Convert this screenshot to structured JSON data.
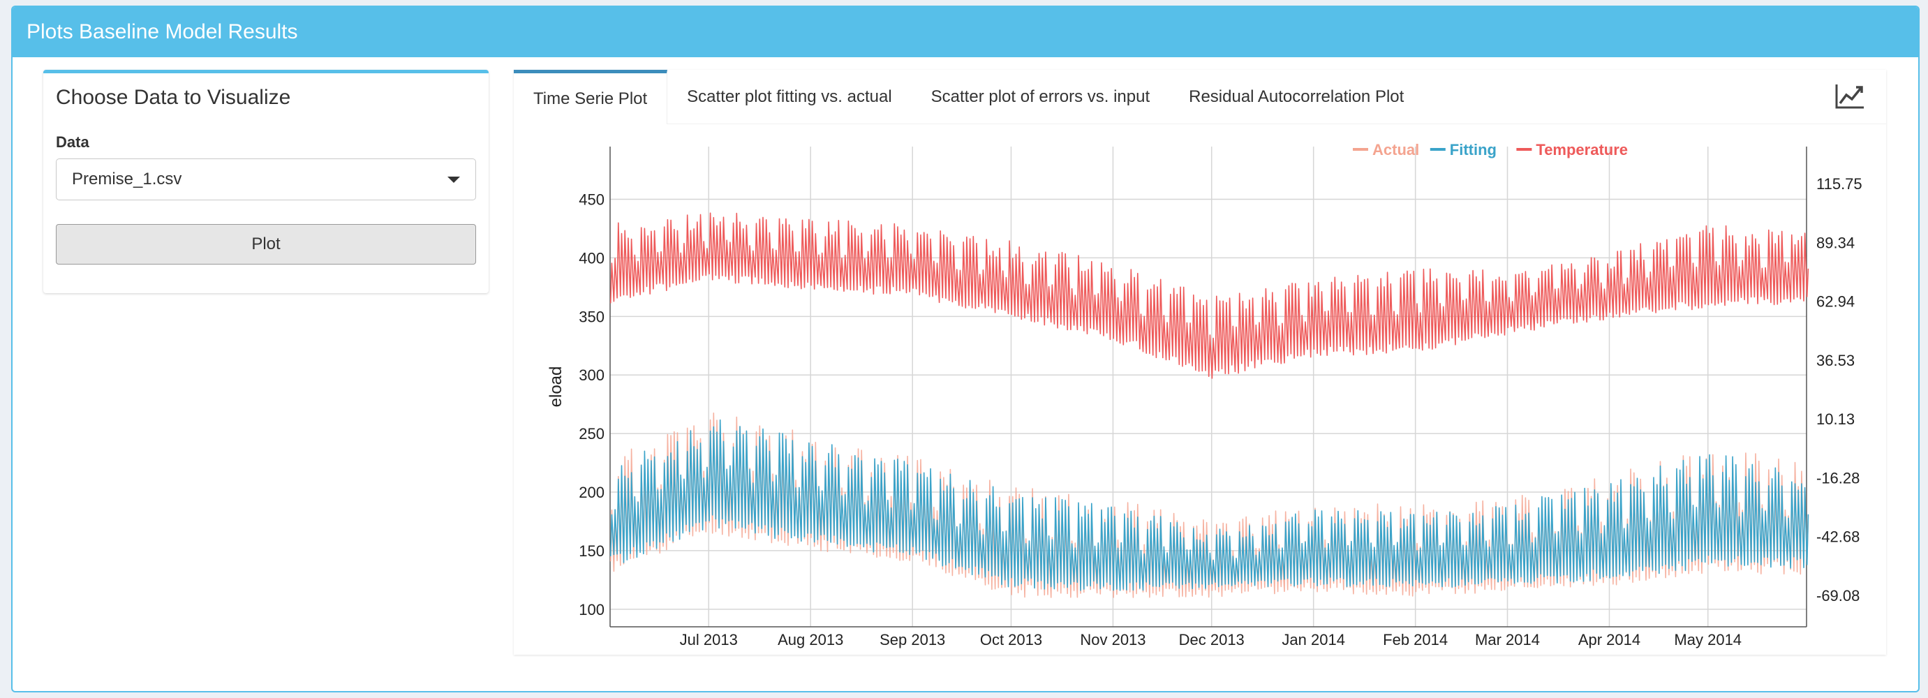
{
  "header": {
    "title": "Plots Baseline Model Results"
  },
  "sidebar_panel": {
    "title": "Choose Data to Visualize",
    "data_label": "Data",
    "data_select_value": "Premise_1.csv",
    "plot_button_label": "Plot"
  },
  "tabs": [
    {
      "label": "Time Serie Plot",
      "active": true
    },
    {
      "label": "Scatter plot fitting vs. actual",
      "active": false
    },
    {
      "label": "Scatter plot of errors vs. input",
      "active": false
    },
    {
      "label": "Residual Autocorrelation Plot",
      "active": false
    }
  ],
  "tab_icon": "line-chart-icon",
  "colors": {
    "accent": "#57bfe9",
    "actual": "#f4a490",
    "fitting": "#3aa3c9",
    "temperature": "#ee5a5a"
  },
  "chart_data": {
    "type": "line",
    "title": "",
    "xlabel": "",
    "ylabel": "eload",
    "y2label": "Temperature",
    "ylim": [
      85,
      495
    ],
    "y2lim": [
      -83.2,
      132.4
    ],
    "yticks": [
      100,
      150,
      200,
      250,
      300,
      350,
      400,
      450
    ],
    "y2ticks": [
      "115.75",
      "89.34",
      "62.94",
      "36.53",
      "10.13",
      "-16.28",
      "-42.68",
      "-69.08"
    ],
    "y2tick_values": [
      115.75,
      89.34,
      62.94,
      36.53,
      10.13,
      -16.28,
      -42.68,
      -69.08
    ],
    "xlim": [
      "2013-06-01",
      "2014-05-31"
    ],
    "xticks": [
      {
        "date": "2013-07-01",
        "label": "Jul 2013"
      },
      {
        "date": "2013-08-01",
        "label": "Aug 2013"
      },
      {
        "date": "2013-09-01",
        "label": "Sep 2013"
      },
      {
        "date": "2013-10-01",
        "label": "Oct 2013"
      },
      {
        "date": "2013-11-01",
        "label": "Nov 2013"
      },
      {
        "date": "2013-12-01",
        "label": "Dec 2013"
      },
      {
        "date": "2014-01-01",
        "label": "Jan 2014"
      },
      {
        "date": "2014-02-01",
        "label": "Feb 2014"
      },
      {
        "date": "2014-03-01",
        "label": "Mar 2014"
      },
      {
        "date": "2014-04-01",
        "label": "Apr 2014"
      },
      {
        "date": "2014-05-01",
        "label": "May 2014"
      }
    ],
    "grid": true,
    "legend_position": "top-right",
    "series": [
      {
        "name": "Actual",
        "axis": "left",
        "color": "#f4a490",
        "envelope": [
          {
            "date": "2013-06-01",
            "low": 130,
            "high": 230
          },
          {
            "date": "2013-07-01",
            "low": 165,
            "high": 270
          },
          {
            "date": "2013-08-01",
            "low": 150,
            "high": 250
          },
          {
            "date": "2013-09-01",
            "low": 140,
            "high": 230
          },
          {
            "date": "2013-10-01",
            "low": 110,
            "high": 205
          },
          {
            "date": "2013-11-01",
            "low": 110,
            "high": 195
          },
          {
            "date": "2013-12-01",
            "low": 110,
            "high": 175
          },
          {
            "date": "2014-01-01",
            "low": 115,
            "high": 190
          },
          {
            "date": "2014-02-01",
            "low": 110,
            "high": 190
          },
          {
            "date": "2014-03-01",
            "low": 115,
            "high": 195
          },
          {
            "date": "2014-04-01",
            "low": 120,
            "high": 215
          },
          {
            "date": "2014-05-01",
            "low": 130,
            "high": 240
          },
          {
            "date": "2014-05-31",
            "low": 130,
            "high": 225
          }
        ]
      },
      {
        "name": "Fitting",
        "axis": "left",
        "color": "#3aa3c9",
        "envelope": [
          {
            "date": "2013-06-01",
            "low": 135,
            "high": 225
          },
          {
            "date": "2013-07-01",
            "low": 170,
            "high": 265
          },
          {
            "date": "2013-08-01",
            "low": 155,
            "high": 245
          },
          {
            "date": "2013-09-01",
            "low": 145,
            "high": 225
          },
          {
            "date": "2013-10-01",
            "low": 118,
            "high": 200
          },
          {
            "date": "2013-11-01",
            "low": 115,
            "high": 190
          },
          {
            "date": "2013-12-01",
            "low": 118,
            "high": 168
          },
          {
            "date": "2014-01-01",
            "low": 120,
            "high": 185
          },
          {
            "date": "2014-02-01",
            "low": 118,
            "high": 185
          },
          {
            "date": "2014-03-01",
            "low": 120,
            "high": 190
          },
          {
            "date": "2014-04-01",
            "low": 125,
            "high": 210
          },
          {
            "date": "2014-05-01",
            "low": 135,
            "high": 235
          },
          {
            "date": "2014-05-31",
            "low": 135,
            "high": 220
          }
        ]
      },
      {
        "name": "Temperature",
        "axis": "right",
        "color": "#ee5a5a",
        "envelope": [
          {
            "date": "2013-06-01",
            "low": 62,
            "high": 98
          },
          {
            "date": "2013-07-01",
            "low": 72,
            "high": 104
          },
          {
            "date": "2013-08-01",
            "low": 68,
            "high": 100
          },
          {
            "date": "2013-09-01",
            "low": 65,
            "high": 98
          },
          {
            "date": "2013-10-01",
            "low": 55,
            "high": 90
          },
          {
            "date": "2013-11-01",
            "low": 45,
            "high": 80
          },
          {
            "date": "2013-12-01",
            "low": 28,
            "high": 65
          },
          {
            "date": "2014-01-01",
            "low": 38,
            "high": 74
          },
          {
            "date": "2014-02-01",
            "low": 40,
            "high": 78
          },
          {
            "date": "2014-03-01",
            "low": 48,
            "high": 78
          },
          {
            "date": "2014-04-01",
            "low": 55,
            "high": 85
          },
          {
            "date": "2014-05-01",
            "low": 60,
            "high": 98
          },
          {
            "date": "2014-05-31",
            "low": 62,
            "high": 95
          }
        ]
      }
    ]
  }
}
